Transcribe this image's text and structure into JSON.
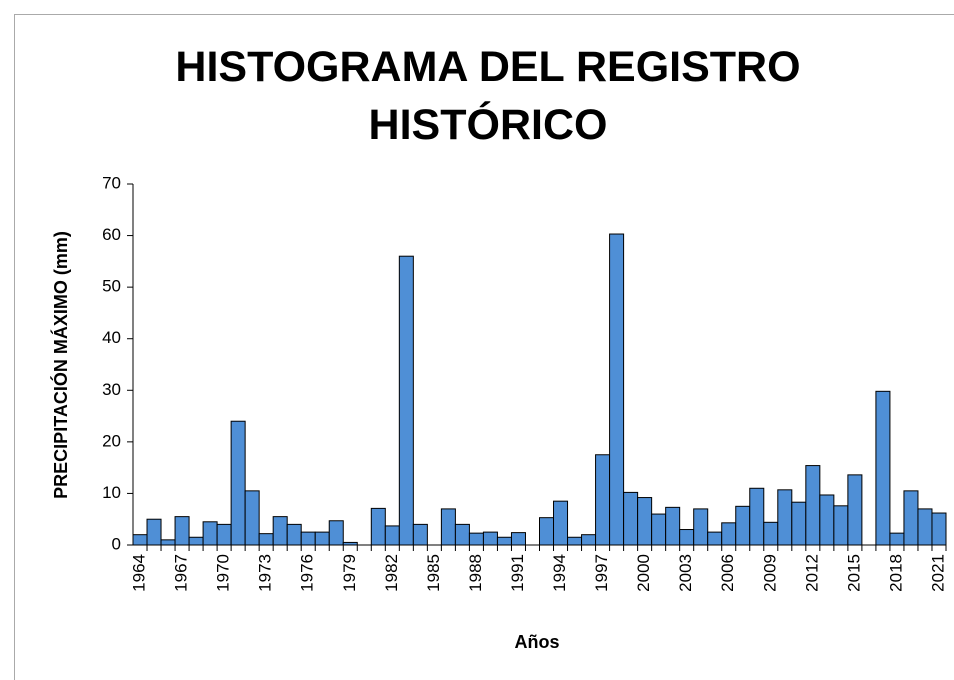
{
  "chart_data": {
    "type": "bar",
    "title": "HISTOGRAMA DEL REGISTRO HISTÓRICO",
    "x_label": "Años",
    "y_label": "PRECIPITACIÓN MÁXIMO (mm)",
    "categories": [
      "1964",
      null,
      null,
      "1967",
      null,
      null,
      "1970",
      null,
      null,
      "1973",
      null,
      null,
      "1976",
      null,
      null,
      "1979",
      null,
      null,
      "1982",
      null,
      null,
      "1985",
      null,
      null,
      "1988",
      null,
      null,
      "1991",
      null,
      null,
      "1994",
      null,
      null,
      "1997",
      null,
      null,
      "2000",
      null,
      null,
      "2003",
      null,
      null,
      "2006",
      null,
      null,
      "2009",
      null,
      null,
      "2012",
      null,
      null,
      "2015",
      null,
      null,
      "2018",
      null,
      null,
      "2021"
    ],
    "values": [
      2,
      5,
      1,
      5.5,
      1.5,
      4.5,
      4,
      24,
      10.5,
      2.2,
      5.5,
      4,
      2.5,
      2.5,
      4.7,
      0.5,
      0,
      7.1,
      3.7,
      56,
      4,
      0,
      7,
      4,
      2.3,
      2.5,
      1.5,
      2.4,
      0,
      5.3,
      8.5,
      1.5,
      2,
      17.5,
      60.3,
      10.2,
      9.2,
      6,
      7.3,
      3,
      7,
      2.5,
      4.3,
      7.5,
      11,
      4.4,
      10.7,
      8.3,
      15.4,
      9.7,
      7.6,
      13.6,
      0,
      29.8,
      2.3,
      10.5,
      7,
      6.2
    ],
    "color": "#4f8fd6",
    "ylim": [
      0,
      70
    ],
    "yticks": [
      0,
      10,
      20,
      30,
      40,
      50,
      60,
      70
    ],
    "grid": false
  }
}
